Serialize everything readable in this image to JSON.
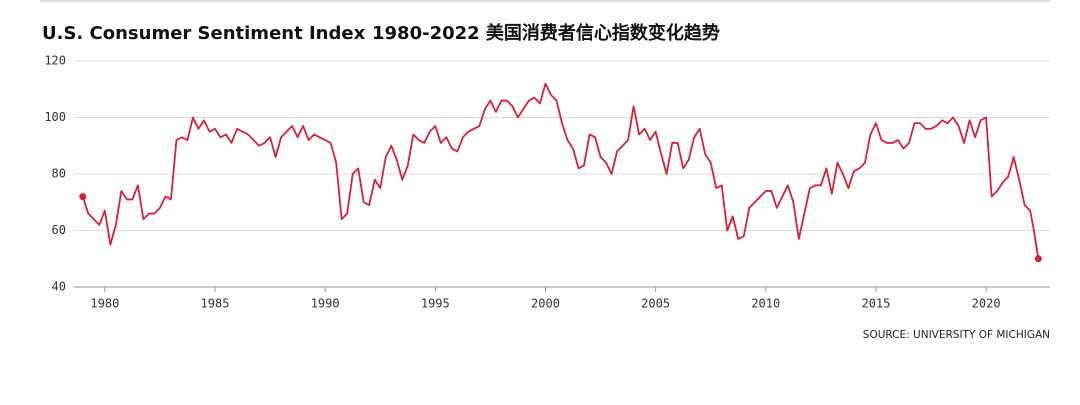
{
  "chart_data": {
    "type": "line",
    "title": "U.S. Consumer Sentiment Index",
    "subtitle": "1980-2022 美国消费者信心指数变化趋势",
    "source": "SOURCE: UNIVERSITY OF MICHIGAN",
    "x": [
      1979,
      1979.25,
      1979.5,
      1979.75,
      1980,
      1980.25,
      1980.5,
      1980.75,
      1981,
      1981.25,
      1981.5,
      1981.75,
      1982,
      1982.25,
      1982.5,
      1982.75,
      1983,
      1983.25,
      1983.5,
      1983.75,
      1984,
      1984.25,
      1984.5,
      1984.75,
      1985,
      1985.25,
      1985.5,
      1985.75,
      1986,
      1986.25,
      1986.5,
      1986.75,
      1987,
      1987.25,
      1987.5,
      1987.75,
      1988,
      1988.25,
      1988.5,
      1988.75,
      1989,
      1989.25,
      1989.5,
      1989.75,
      1990,
      1990.25,
      1990.5,
      1990.75,
      1991,
      1991.25,
      1991.5,
      1991.75,
      1992,
      1992.25,
      1992.5,
      1992.75,
      1993,
      1993.25,
      1993.5,
      1993.75,
      1994,
      1994.25,
      1994.5,
      1994.75,
      1995,
      1995.25,
      1995.5,
      1995.75,
      1996,
      1996.25,
      1996.5,
      1996.75,
      1997,
      1997.25,
      1997.5,
      1997.75,
      1998,
      1998.25,
      1998.5,
      1998.75,
      1999,
      1999.25,
      1999.5,
      1999.75,
      2000,
      2000.25,
      2000.5,
      2000.75,
      2001,
      2001.25,
      2001.5,
      2001.75,
      2002,
      2002.25,
      2002.5,
      2002.75,
      2003,
      2003.25,
      2003.5,
      2003.75,
      2004,
      2004.25,
      2004.5,
      2004.75,
      2005,
      2005.25,
      2005.5,
      2005.75,
      2006,
      2006.25,
      2006.5,
      2006.75,
      2007,
      2007.25,
      2007.5,
      2007.75,
      2008,
      2008.25,
      2008.5,
      2008.75,
      2009,
      2009.25,
      2009.5,
      2009.75,
      2010,
      2010.25,
      2010.5,
      2010.75,
      2011,
      2011.25,
      2011.5,
      2011.75,
      2012,
      2012.25,
      2012.5,
      2012.75,
      2013,
      2013.25,
      2013.5,
      2013.75,
      2014,
      2014.25,
      2014.5,
      2014.75,
      2015,
      2015.25,
      2015.5,
      2015.75,
      2016,
      2016.25,
      2016.5,
      2016.75,
      2017,
      2017.25,
      2017.5,
      2017.75,
      2018,
      2018.25,
      2018.5,
      2018.75,
      2019,
      2019.25,
      2019.5,
      2019.75,
      2020,
      2020.25,
      2020.5,
      2020.75,
      2021,
      2021.25,
      2021.5,
      2021.75,
      2022,
      2022.17,
      2022.37
    ],
    "series": [
      {
        "name": "Consumer Sentiment",
        "color": "#d6213a",
        "values": [
          72,
          66,
          64,
          62,
          67,
          55,
          62,
          74,
          71,
          71,
          76,
          64,
          66,
          66,
          68,
          72,
          71,
          92,
          93,
          92,
          100,
          96,
          99,
          95,
          96,
          93,
          94,
          91,
          96,
          95,
          94,
          92,
          90,
          91,
          93,
          86,
          93,
          95,
          97,
          93,
          97,
          92,
          94,
          93,
          92,
          91,
          84,
          64,
          66,
          80,
          82,
          70,
          69,
          78,
          75,
          86,
          90,
          85,
          78,
          83,
          94,
          92,
          91,
          95,
          97,
          91,
          93,
          89,
          88,
          93,
          95,
          96,
          97,
          103,
          106,
          102,
          106,
          106,
          104,
          100,
          103,
          106,
          107,
          105,
          112,
          108,
          106,
          98,
          92,
          89,
          82,
          83,
          94,
          93,
          86,
          84,
          80,
          88,
          90,
          92,
          104,
          94,
          96,
          92,
          95,
          87,
          80,
          91,
          91,
          82,
          85,
          93,
          96,
          87,
          84,
          75,
          76,
          60,
          65,
          57,
          58,
          68,
          70,
          72,
          74,
          74,
          68,
          72,
          76,
          70,
          57,
          66,
          75,
          76,
          76,
          82,
          73,
          84,
          80,
          75,
          81,
          82,
          84,
          94,
          98,
          92,
          91,
          91,
          92,
          89,
          91,
          98,
          98,
          96,
          96,
          97,
          99,
          98,
          100,
          97,
          91,
          99,
          93,
          99,
          100,
          72,
          74,
          77,
          79,
          86,
          78,
          69,
          67,
          60,
          50
        ]
      }
    ],
    "xlim": [
      1978.6,
      2022.9
    ],
    "xticks": [
      1980,
      1985,
      1990,
      1995,
      2000,
      2005,
      2010,
      2015,
      2020
    ],
    "ylim": [
      40,
      120
    ],
    "yticks": [
      40,
      60,
      80,
      100,
      120
    ],
    "grid": true
  }
}
